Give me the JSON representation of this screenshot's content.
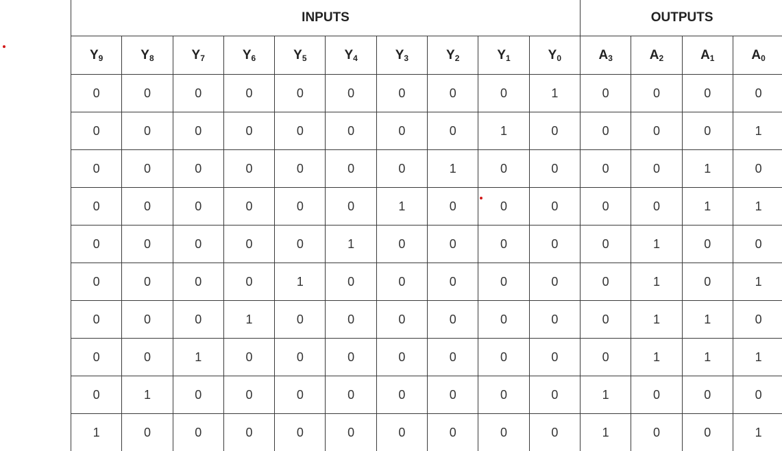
{
  "group_headers": {
    "inputs": "INPUTS",
    "outputs": "OUTPUTS"
  },
  "columns": [
    {
      "letter": "Y",
      "index": "9"
    },
    {
      "letter": "Y",
      "index": "8"
    },
    {
      "letter": "Y",
      "index": "7"
    },
    {
      "letter": "Y",
      "index": "6"
    },
    {
      "letter": "Y",
      "index": "5"
    },
    {
      "letter": "Y",
      "index": "4"
    },
    {
      "letter": "Y",
      "index": "3"
    },
    {
      "letter": "Y",
      "index": "2"
    },
    {
      "letter": "Y",
      "index": "1"
    },
    {
      "letter": "Y",
      "index": "0"
    },
    {
      "letter": "A",
      "index": "3"
    },
    {
      "letter": "A",
      "index": "2"
    },
    {
      "letter": "A",
      "index": "1"
    },
    {
      "letter": "A",
      "index": "0"
    }
  ],
  "rows": [
    [
      "0",
      "0",
      "0",
      "0",
      "0",
      "0",
      "0",
      "0",
      "0",
      "1",
      "0",
      "0",
      "0",
      "0"
    ],
    [
      "0",
      "0",
      "0",
      "0",
      "0",
      "0",
      "0",
      "0",
      "1",
      "0",
      "0",
      "0",
      "0",
      "1"
    ],
    [
      "0",
      "0",
      "0",
      "0",
      "0",
      "0",
      "0",
      "1",
      "0",
      "0",
      "0",
      "0",
      "1",
      "0"
    ],
    [
      "0",
      "0",
      "0",
      "0",
      "0",
      "0",
      "1",
      "0",
      "0",
      "0",
      "0",
      "0",
      "1",
      "1"
    ],
    [
      "0",
      "0",
      "0",
      "0",
      "0",
      "1",
      "0",
      "0",
      "0",
      "0",
      "0",
      "1",
      "0",
      "0"
    ],
    [
      "0",
      "0",
      "0",
      "0",
      "1",
      "0",
      "0",
      "0",
      "0",
      "0",
      "0",
      "1",
      "0",
      "1"
    ],
    [
      "0",
      "0",
      "0",
      "1",
      "0",
      "0",
      "0",
      "0",
      "0",
      "0",
      "0",
      "1",
      "1",
      "0"
    ],
    [
      "0",
      "0",
      "1",
      "0",
      "0",
      "0",
      "0",
      "0",
      "0",
      "0",
      "0",
      "1",
      "1",
      "1"
    ],
    [
      "0",
      "1",
      "0",
      "0",
      "0",
      "0",
      "0",
      "0",
      "0",
      "0",
      "1",
      "0",
      "0",
      "0"
    ],
    [
      "1",
      "0",
      "0",
      "0",
      "0",
      "0",
      "0",
      "0",
      "0",
      "0",
      "1",
      "0",
      "0",
      "1"
    ]
  ]
}
